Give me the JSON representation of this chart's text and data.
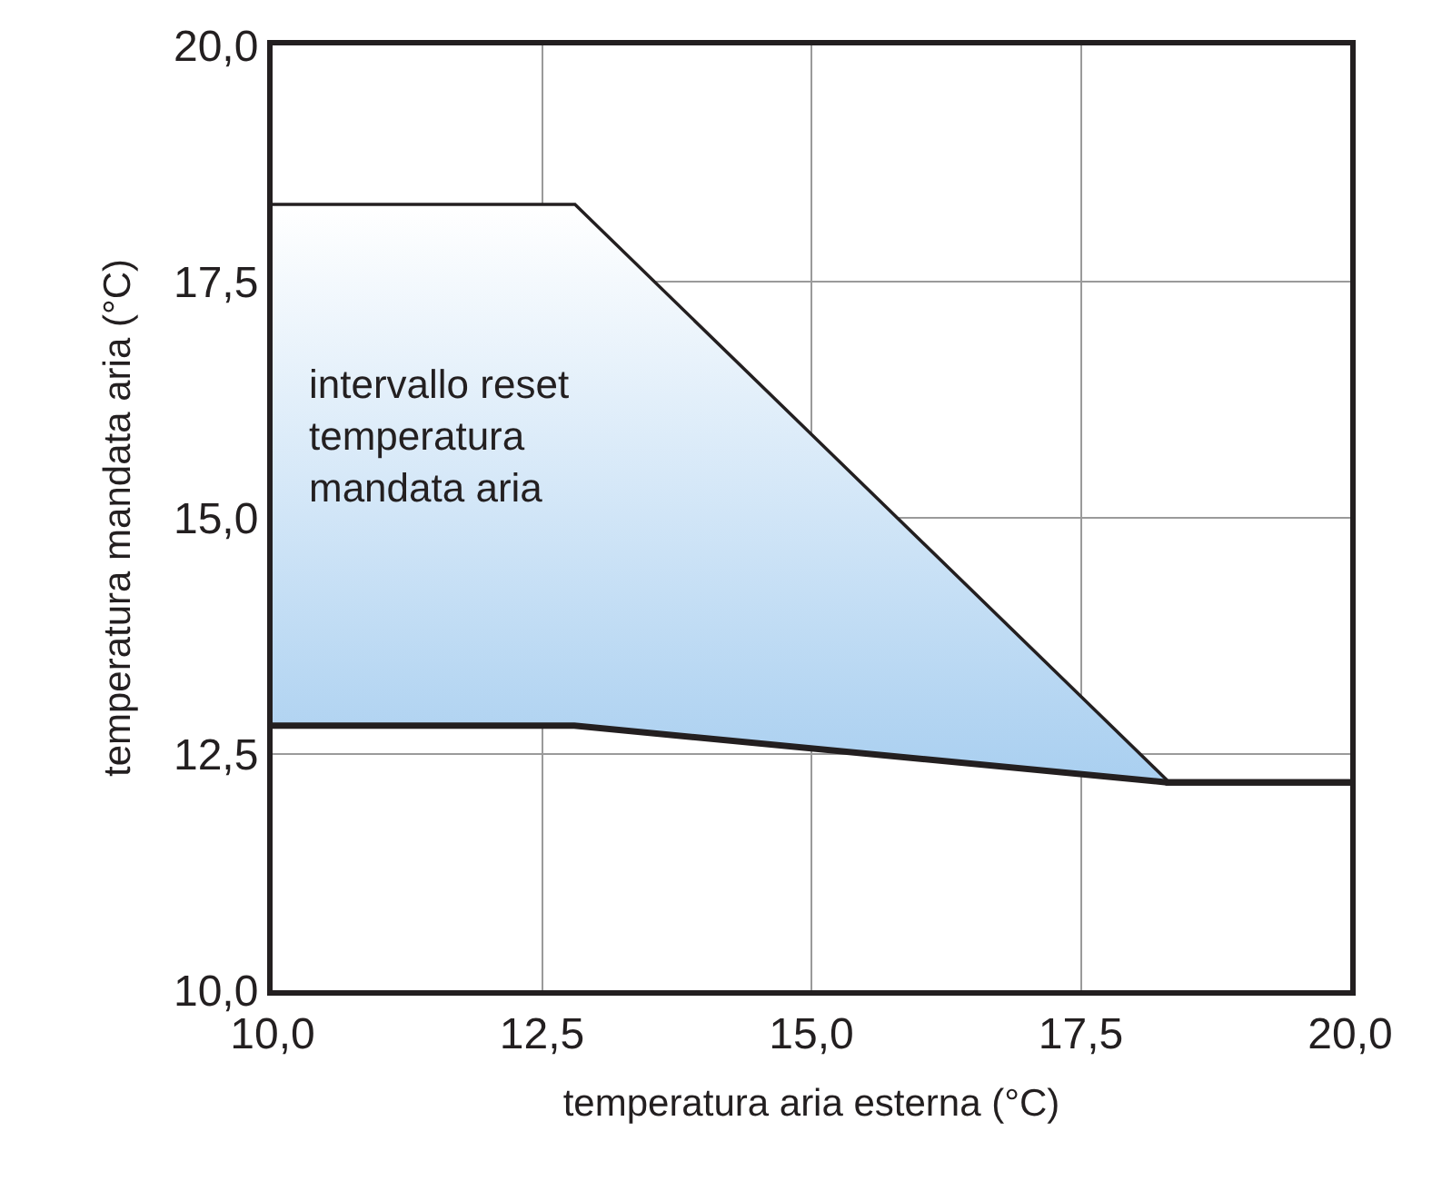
{
  "chart_data": {
    "type": "line",
    "xlabel": "temperatura aria esterna (°C)",
    "ylabel": "temperatura mandata aria (°C)",
    "x": [
      10,
      12.8,
      18.3,
      20
    ],
    "series": [
      {
        "color": "#231f20",
        "values": [
          18.3,
          18.3,
          12.2,
          12.2
        ]
      },
      {
        "color": "#231f20",
        "values": [
          12.8,
          12.8,
          12.2,
          12.2
        ],
        "lower": [
          12.8,
          12.8,
          12.2,
          12.2
        ],
        "upper": [
          18.3,
          18.3,
          12.2,
          12.2
        ]
      }
    ],
    "annotations": [
      "intervallo reset\ntemperatura\nmandata aria"
    ],
    "xlim": [
      10,
      20
    ],
    "ylim": [
      10,
      20
    ],
    "xticks": [
      {
        "value": 10,
        "label": "10,0"
      },
      {
        "value": 12.5,
        "label": "12,5"
      },
      {
        "value": 15,
        "label": "15,0"
      },
      {
        "value": 17.5,
        "label": "17,5"
      },
      {
        "value": 20,
        "label": "20,0"
      }
    ],
    "yticks": [
      {
        "value": 10,
        "label": "10,0"
      },
      {
        "value": 12.5,
        "label": "12,5"
      },
      {
        "value": 15,
        "label": "15,0"
      },
      {
        "value": 17.5,
        "label": "17,5"
      },
      {
        "value": 20,
        "label": "20,0"
      }
    ],
    "grid": true,
    "marker": "none",
    "line_style": "solid"
  }
}
